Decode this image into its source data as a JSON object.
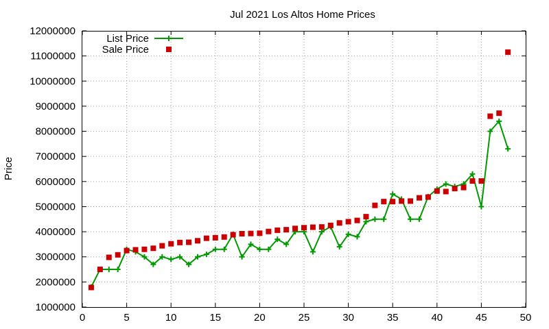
{
  "chart_data": {
    "type": "line",
    "title": "Jul 2021 Los Altos Home Prices",
    "xlabel": "",
    "ylabel": "Price",
    "xlim": [
      0,
      50
    ],
    "ylim": [
      1000000,
      12000000
    ],
    "x_ticks": [
      0,
      5,
      10,
      15,
      20,
      25,
      30,
      35,
      40,
      45,
      50
    ],
    "y_ticks": [
      1000000,
      2000000,
      3000000,
      4000000,
      5000000,
      6000000,
      7000000,
      8000000,
      9000000,
      10000000,
      11000000,
      12000000
    ],
    "grid": true,
    "legend_position": "top-left",
    "series": [
      {
        "name": "List Price",
        "style": "linespoints",
        "color": "#009900",
        "x": [
          1,
          2,
          3,
          4,
          5,
          6,
          7,
          8,
          9,
          10,
          11,
          12,
          13,
          14,
          15,
          16,
          17,
          18,
          19,
          20,
          21,
          22,
          23,
          24,
          25,
          26,
          27,
          28,
          29,
          30,
          31,
          32,
          33,
          34,
          35,
          36,
          37,
          38,
          39,
          40,
          41,
          42,
          43,
          44,
          45,
          46,
          47,
          48
        ],
        "values": [
          1800000,
          2500000,
          2500000,
          2500000,
          3300000,
          3200000,
          3000000,
          2700000,
          3000000,
          2900000,
          3000000,
          2700000,
          3000000,
          3100000,
          3300000,
          3300000,
          3900000,
          3000000,
          3500000,
          3300000,
          3300000,
          3700000,
          3500000,
          4000000,
          4000000,
          3200000,
          4000000,
          4200000,
          3400000,
          3900000,
          3800000,
          4400000,
          4500000,
          4500000,
          5500000,
          5300000,
          4500000,
          4500000,
          5400000,
          5700000,
          5900000,
          5800000,
          5900000,
          6300000,
          5000000,
          8000000,
          8400000,
          7300000
        ]
      },
      {
        "name": "Sale Price",
        "style": "points",
        "color": "#cc0000",
        "x": [
          1,
          2,
          3,
          4,
          5,
          6,
          7,
          8,
          9,
          10,
          11,
          12,
          13,
          14,
          15,
          16,
          17,
          18,
          19,
          20,
          21,
          22,
          23,
          24,
          25,
          26,
          27,
          28,
          29,
          30,
          31,
          32,
          33,
          34,
          35,
          36,
          37,
          38,
          39,
          40,
          41,
          42,
          43,
          44,
          45,
          46,
          47,
          48
        ],
        "values": [
          1780000,
          2500000,
          2980000,
          3080000,
          3250000,
          3280000,
          3300000,
          3340000,
          3440000,
          3520000,
          3570000,
          3580000,
          3640000,
          3740000,
          3760000,
          3790000,
          3880000,
          3920000,
          3930000,
          3940000,
          4010000,
          4060000,
          4080000,
          4130000,
          4160000,
          4180000,
          4190000,
          4250000,
          4350000,
          4400000,
          4450000,
          4600000,
          5050000,
          5200000,
          5200000,
          5220000,
          5220000,
          5350000,
          5380000,
          5620000,
          5600000,
          5720000,
          5760000,
          6020000,
          6020000,
          8600000,
          8720000,
          11150000
        ]
      }
    ]
  }
}
